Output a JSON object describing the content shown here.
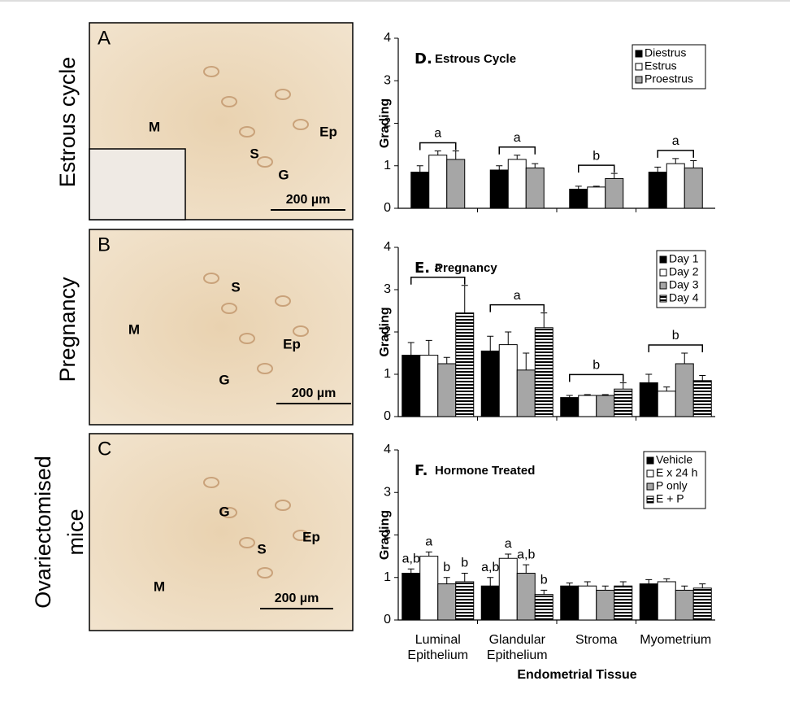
{
  "panels": [
    {
      "letter": "A",
      "caption": [
        "Estrous cycle"
      ],
      "labels": [
        "M",
        "S",
        "G",
        "Ep"
      ],
      "scale": "200 µm"
    },
    {
      "letter": "B",
      "caption": [
        "Pregnancy"
      ],
      "labels": [
        "M",
        "S",
        "Ep",
        "G"
      ],
      "scale": "200 µm"
    },
    {
      "letter": "C",
      "caption": [
        "Ovariectomised",
        "mice"
      ],
      "labels": [
        "M",
        "S",
        "G",
        "Ep"
      ],
      "scale": "200 µm"
    }
  ],
  "chart_data": [
    {
      "type": "bar",
      "panel": "D.",
      "title": "Estrous Cycle",
      "y_label": "Grading",
      "ylim": [
        0,
        4
      ],
      "yticks": [
        0,
        1,
        2,
        3,
        4
      ],
      "group_labels": [
        "a",
        "a",
        "b",
        "a"
      ],
      "series": [
        {
          "name": "Diestrus",
          "color": "#000000",
          "values": [
            0.85,
            0.9,
            0.45,
            0.85
          ],
          "errors": [
            0.15,
            0.1,
            0.07,
            0.12
          ]
        },
        {
          "name": "Estrus",
          "color": "#ffffff",
          "values": [
            1.25,
            1.15,
            0.5,
            1.05
          ],
          "errors": [
            0.1,
            0.1,
            0.02,
            0.12
          ]
        },
        {
          "name": "Proestrus",
          "color": "#a6a6a6",
          "values": [
            1.15,
            0.95,
            0.7,
            0.95
          ],
          "errors": [
            0.2,
            0.1,
            0.12,
            0.17
          ]
        }
      ]
    },
    {
      "type": "bar",
      "panel": "E.",
      "title": "Pregnancy",
      "y_label": "Grading",
      "ylim": [
        0,
        4
      ],
      "yticks": [
        0,
        1,
        2,
        3,
        4
      ],
      "group_labels": [
        "a",
        "a",
        "b",
        "b"
      ],
      "series": [
        {
          "name": "Day 1",
          "color": "#000000",
          "values": [
            1.45,
            1.55,
            0.45,
            0.8
          ],
          "errors": [
            0.3,
            0.35,
            0.05,
            0.2
          ]
        },
        {
          "name": "Day 2",
          "color": "#ffffff",
          "values": [
            1.45,
            1.7,
            0.5,
            0.6
          ],
          "errors": [
            0.35,
            0.3,
            0.02,
            0.1
          ]
        },
        {
          "name": "Day 3",
          "color": "#a6a6a6",
          "values": [
            1.25,
            1.1,
            0.5,
            1.25
          ],
          "errors": [
            0.15,
            0.4,
            0.02,
            0.25
          ]
        },
        {
          "name": "Day 4",
          "color": "#000000",
          "hatch": true,
          "values": [
            2.45,
            2.1,
            0.65,
            0.85
          ],
          "errors": [
            0.65,
            0.35,
            0.15,
            0.12
          ]
        }
      ]
    },
    {
      "type": "bar",
      "panel": "F.",
      "title": "Hormone Treated",
      "y_label": "Grading",
      "x_label": "Endometrial Tissue",
      "ylim": [
        0,
        4
      ],
      "yticks": [
        0,
        1,
        2,
        3,
        4
      ],
      "categories": [
        [
          "Luminal",
          "Epithelium"
        ],
        [
          "Glandular",
          "Epithelium"
        ],
        [
          "Stroma"
        ],
        [
          "Myometrium"
        ]
      ],
      "series": [
        {
          "name": "Vehicle",
          "color": "#000000",
          "values": [
            1.1,
            0.8,
            0.8,
            0.85
          ],
          "errors": [
            0.1,
            0.2,
            0.07,
            0.1
          ],
          "bar_labels": [
            "a,b",
            "a,b",
            null,
            null
          ]
        },
        {
          "name": "E x 24 h",
          "color": "#ffffff",
          "values": [
            1.5,
            1.45,
            0.8,
            0.9
          ],
          "errors": [
            0.1,
            0.1,
            0.1,
            0.07
          ],
          "bar_labels": [
            "a",
            "a",
            null,
            null
          ]
        },
        {
          "name": "P only",
          "color": "#a6a6a6",
          "values": [
            0.85,
            1.1,
            0.7,
            0.7
          ],
          "errors": [
            0.15,
            0.2,
            0.1,
            0.1
          ],
          "bar_labels": [
            "b",
            "a,b",
            null,
            null
          ]
        },
        {
          "name": "E + P",
          "color": "#000000",
          "hatch": true,
          "values": [
            0.9,
            0.6,
            0.8,
            0.75
          ],
          "errors": [
            0.2,
            0.1,
            0.1,
            0.1
          ],
          "bar_labels": [
            "b",
            "b",
            null,
            null
          ]
        }
      ]
    }
  ]
}
